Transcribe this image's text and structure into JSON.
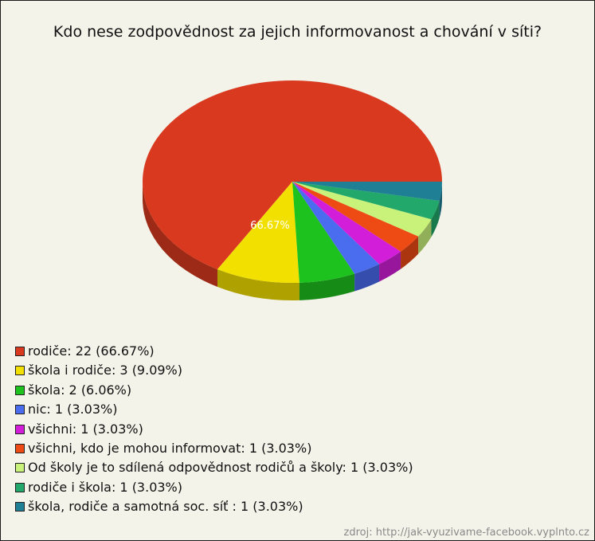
{
  "chart_data": {
    "type": "pie",
    "title": "Kdo nese zodpovědnost za jejich informovanost a chování v síti?",
    "slices": [
      {
        "label": "rodiče",
        "value": 22,
        "percent": "66.67%",
        "color": "#d93a1f"
      },
      {
        "label": "škola i rodiče",
        "value": 3,
        "percent": "9.09%",
        "color": "#f2e000"
      },
      {
        "label": "škola",
        "value": 2,
        "percent": "6.06%",
        "color": "#1ec21e"
      },
      {
        "label": "nic",
        "value": 1,
        "percent": "3.03%",
        "color": "#4a6df0"
      },
      {
        "label": "všichni",
        "value": 1,
        "percent": "3.03%",
        "color": "#d21ed8"
      },
      {
        "label": "všichni, kdo je mohou informovat",
        "value": 1,
        "percent": "3.03%",
        "color": "#ee4a14"
      },
      {
        "label": "Od školy je to sdílená odpovědnost rodičů a školy",
        "value": 1,
        "percent": "3.03%",
        "color": "#c9f27a"
      },
      {
        "label": "rodiče i škola",
        "value": 1,
        "percent": "3.03%",
        "color": "#22a86a"
      },
      {
        "label": "škola, rodiče a samotná soc. síť ",
        "value": 1,
        "percent": "3.03%",
        "color": "#1f7f95"
      }
    ],
    "data_labels": [
      "66.67%"
    ],
    "legend_position": "bottom-left"
  },
  "source_note": "zdroj: http://jak-vyuzivame-facebook.vyplnto.cz"
}
